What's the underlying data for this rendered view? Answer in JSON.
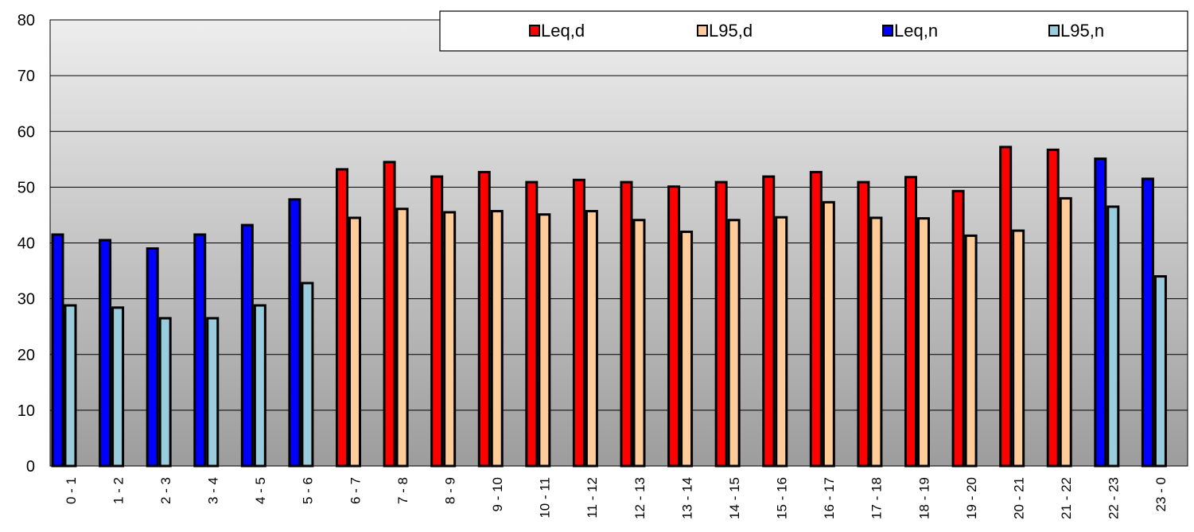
{
  "chart_data": {
    "type": "bar",
    "title": "",
    "xlabel": "",
    "ylabel": "",
    "ylim": [
      0,
      80
    ],
    "yticks": [
      0,
      10,
      20,
      30,
      40,
      50,
      60,
      70,
      80
    ],
    "grid": true,
    "legend_position": "top-right",
    "categories": [
      "0 - 1",
      "1 - 2",
      "2 - 3",
      "3 - 4",
      "4 - 5",
      "5 - 6",
      "6 - 7",
      "7 - 8",
      "8 - 9",
      "9 - 10",
      "10 - 11",
      "11 - 12",
      "12 - 13",
      "13 - 14",
      "14 - 15",
      "15 - 16",
      "16 - 17",
      "17 - 18",
      "18 - 19",
      "19 - 20",
      "20 - 21",
      "21 - 22",
      "22 - 23",
      "23 - 0"
    ],
    "legend": [
      {
        "name": "Leq,d",
        "color": "#ff0000"
      },
      {
        "name": "L95,d",
        "color": "#ffcc99"
      },
      {
        "name": "Leq,n",
        "color": "#0000ff"
      },
      {
        "name": "L95,n",
        "color": "#99ccdd"
      }
    ],
    "bars": [
      {
        "category": "0 - 1",
        "leq": 41.5,
        "l95": 28.8,
        "period": "n"
      },
      {
        "category": "1 - 2",
        "leq": 40.5,
        "l95": 28.4,
        "period": "n"
      },
      {
        "category": "2 - 3",
        "leq": 39.0,
        "l95": 26.5,
        "period": "n"
      },
      {
        "category": "3 - 4",
        "leq": 41.5,
        "l95": 26.5,
        "period": "n"
      },
      {
        "category": "4 - 5",
        "leq": 43.2,
        "l95": 28.8,
        "period": "n"
      },
      {
        "category": "5 - 6",
        "leq": 47.8,
        "l95": 32.8,
        "period": "n"
      },
      {
        "category": "6 - 7",
        "leq": 53.2,
        "l95": 44.5,
        "period": "d"
      },
      {
        "category": "7 - 8",
        "leq": 54.5,
        "l95": 46.1,
        "period": "d"
      },
      {
        "category": "8 - 9",
        "leq": 51.9,
        "l95": 45.5,
        "period": "d"
      },
      {
        "category": "9 - 10",
        "leq": 52.7,
        "l95": 45.7,
        "period": "d"
      },
      {
        "category": "10 - 11",
        "leq": 50.9,
        "l95": 45.1,
        "period": "d"
      },
      {
        "category": "11 - 12",
        "leq": 51.3,
        "l95": 45.7,
        "period": "d"
      },
      {
        "category": "12 - 13",
        "leq": 50.9,
        "l95": 44.1,
        "period": "d"
      },
      {
        "category": "13 - 14",
        "leq": 50.1,
        "l95": 42.0,
        "period": "d"
      },
      {
        "category": "14 - 15",
        "leq": 50.9,
        "l95": 44.1,
        "period": "d"
      },
      {
        "category": "15 - 16",
        "leq": 51.9,
        "l95": 44.6,
        "period": "d"
      },
      {
        "category": "16 - 17",
        "leq": 52.7,
        "l95": 47.3,
        "period": "d"
      },
      {
        "category": "17 - 18",
        "leq": 50.9,
        "l95": 44.5,
        "period": "d"
      },
      {
        "category": "18 - 19",
        "leq": 51.8,
        "l95": 44.4,
        "period": "d"
      },
      {
        "category": "19 - 20",
        "leq": 49.3,
        "l95": 41.3,
        "period": "d"
      },
      {
        "category": "20 - 21",
        "leq": 57.2,
        "l95": 42.2,
        "period": "d"
      },
      {
        "category": "21 - 22",
        "leq": 56.7,
        "l95": 48.0,
        "period": "d"
      },
      {
        "category": "22 - 23",
        "leq": 55.1,
        "l95": 46.5,
        "period": "n"
      },
      {
        "category": "23 - 0",
        "leq": 51.5,
        "l95": 34.0,
        "period": "n"
      }
    ]
  }
}
